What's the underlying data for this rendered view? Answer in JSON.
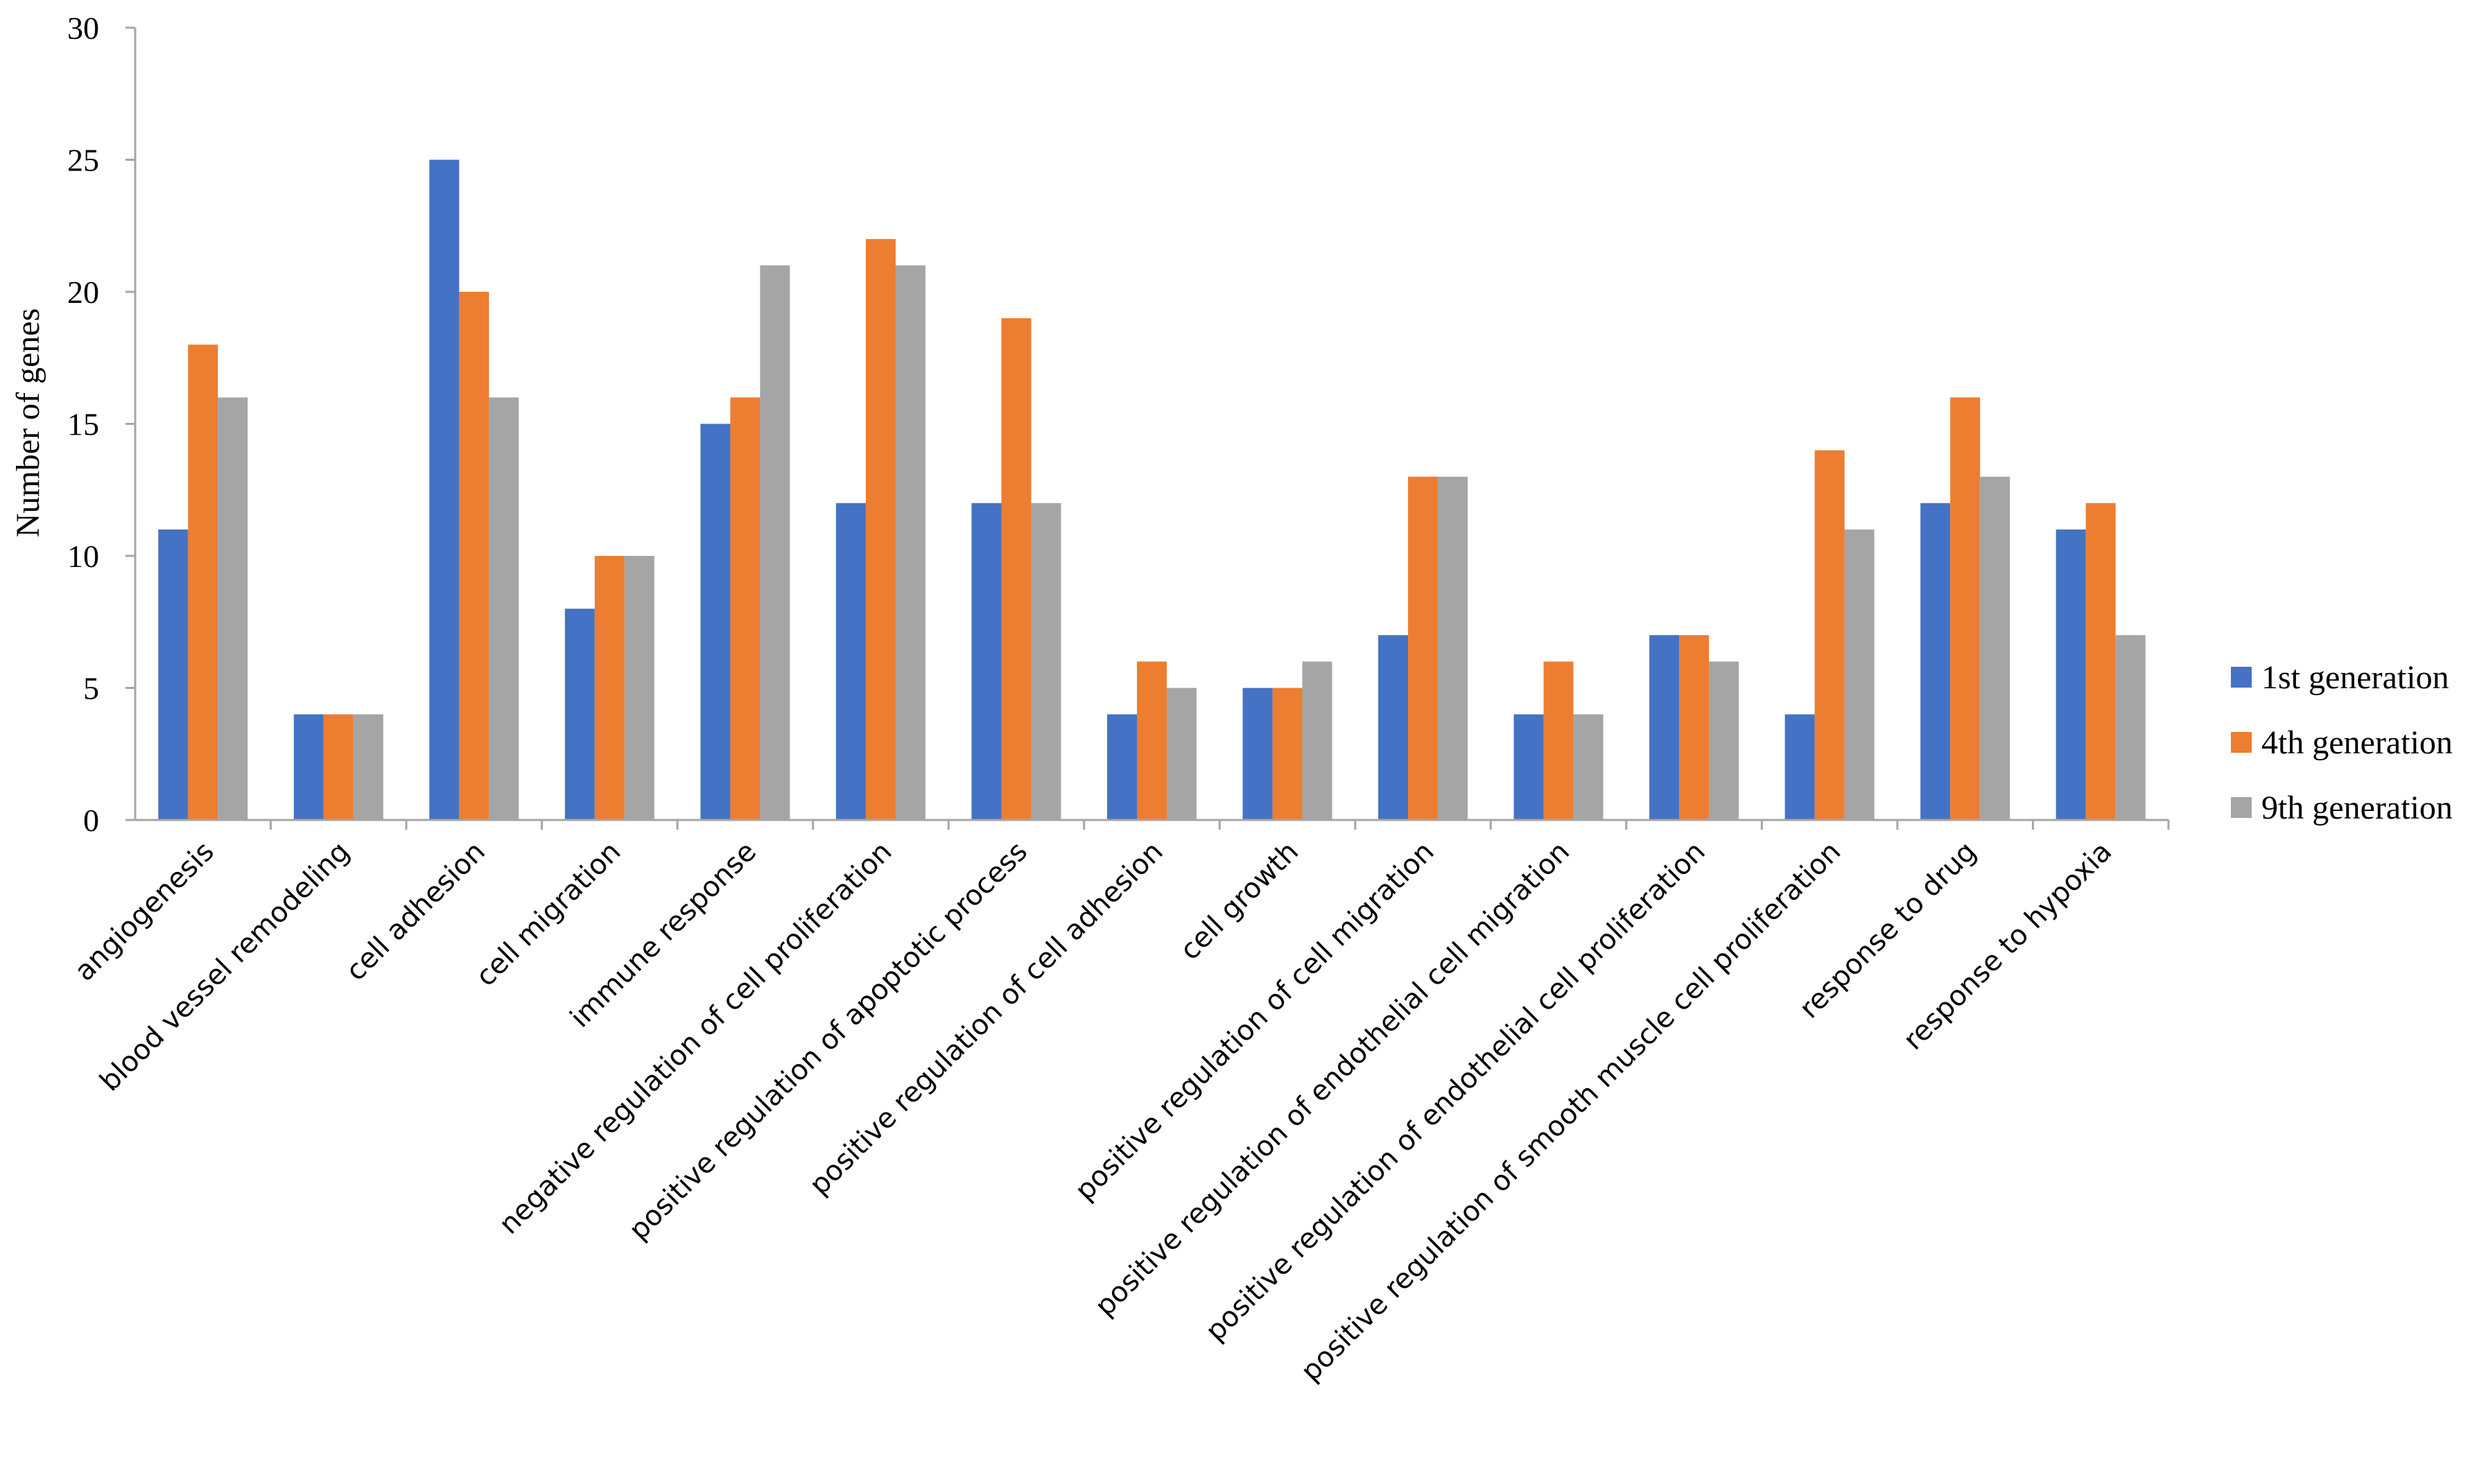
{
  "chart_data": {
    "type": "bar",
    "title": "",
    "xlabel": "",
    "ylabel": "Number of genes",
    "ylim": [
      0,
      30
    ],
    "yticks": [
      0,
      5,
      10,
      15,
      20,
      25,
      30
    ],
    "grid": false,
    "legend_position": "right",
    "categories": [
      "angiogenesis",
      "blood vessel remodeling",
      "cell adhesion",
      "cell migration",
      "immune response",
      "negative regulation of cell proliferation",
      "positive regulation of apoptotic process",
      "positive regulation of cell adhesion",
      "cell growth",
      "positive regulation of cell migration",
      "positive regulation of endothelial cell migration",
      "positive regulation of endothelial cell proliferation",
      "positive regulation of smooth muscle cell proliferation",
      "response to drug",
      "response to hypoxia"
    ],
    "series": [
      {
        "name": "1st generation",
        "color": "#4472c4",
        "values": [
          11,
          4,
          25,
          8,
          15,
          12,
          12,
          4,
          5,
          7,
          4,
          7,
          4,
          12,
          11
        ]
      },
      {
        "name": "4th generation",
        "color": "#ed7d31",
        "values": [
          18,
          4,
          20,
          10,
          16,
          22,
          19,
          6,
          5,
          13,
          6,
          7,
          14,
          16,
          12
        ]
      },
      {
        "name": "9th generation",
        "color": "#a5a5a5",
        "values": [
          16,
          4,
          16,
          10,
          21,
          21,
          12,
          5,
          6,
          13,
          4,
          6,
          11,
          13,
          7
        ]
      }
    ]
  }
}
